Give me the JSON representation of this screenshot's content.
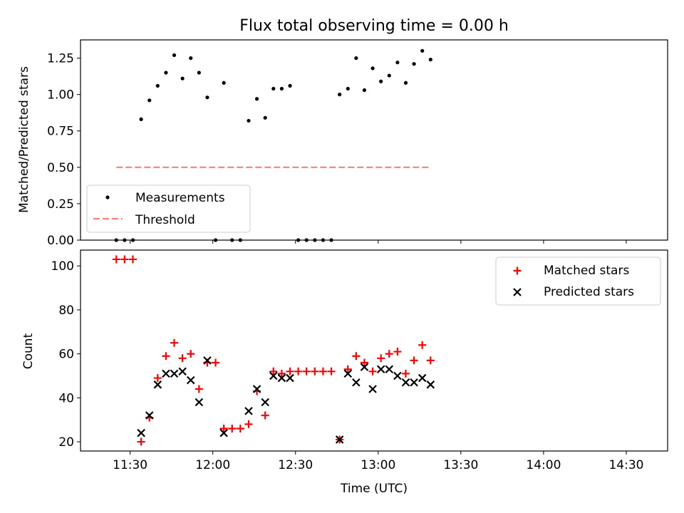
{
  "figure": {
    "title": "Flux total observing time = 0.00 h",
    "xlabel": "Time (UTC)"
  },
  "colors": {
    "measurements": "#000000",
    "threshold": "#ff7f7f",
    "matched": "#ff0000",
    "predicted": "#000000",
    "axes": "#000000",
    "legend_border": "#cccccc"
  },
  "chart_data": [
    {
      "type": "scatter",
      "panel": "top",
      "title": "Flux total observing time = 0.00 h",
      "xlabel": "",
      "ylabel": "Matched/Predicted stars",
      "xlim": [
        "11:12",
        "14:45"
      ],
      "ylim": [
        0,
        1.375
      ],
      "yticks": [
        0.0,
        0.25,
        0.5,
        0.75,
        1.0,
        1.25
      ],
      "ytick_labels": [
        "0.00",
        "0.25",
        "0.50",
        "0.75",
        "1.00",
        "1.25"
      ],
      "legend_placement": "lower-left",
      "series": [
        {
          "name": "Measurements",
          "marker": "dot",
          "points": [
            [
              "11:25",
              0.0
            ],
            [
              "11:28",
              0.0
            ],
            [
              "11:31",
              0.0
            ],
            [
              "11:34",
              0.83
            ],
            [
              "11:37",
              0.96
            ],
            [
              "11:40",
              1.06
            ],
            [
              "11:43",
              1.15
            ],
            [
              "11:46",
              1.27
            ],
            [
              "11:49",
              1.11
            ],
            [
              "11:52",
              1.25
            ],
            [
              "11:55",
              1.15
            ],
            [
              "11:58",
              0.98
            ],
            [
              "12:01",
              0.0
            ],
            [
              "12:04",
              1.08
            ],
            [
              "12:07",
              0.0
            ],
            [
              "12:10",
              0.0
            ],
            [
              "12:13",
              0.82
            ],
            [
              "12:16",
              0.97
            ],
            [
              "12:19",
              0.84
            ],
            [
              "12:22",
              1.04
            ],
            [
              "12:25",
              1.04
            ],
            [
              "12:28",
              1.06
            ],
            [
              "12:31",
              0.0
            ],
            [
              "12:34",
              0.0
            ],
            [
              "12:37",
              0.0
            ],
            [
              "12:40",
              0.0
            ],
            [
              "12:43",
              0.0
            ],
            [
              "12:46",
              1.0
            ],
            [
              "12:49",
              1.04
            ],
            [
              "12:52",
              1.25
            ],
            [
              "12:55",
              1.03
            ],
            [
              "12:58",
              1.18
            ],
            [
              "13:01",
              1.09
            ],
            [
              "13:04",
              1.13
            ],
            [
              "13:07",
              1.22
            ],
            [
              "13:10",
              1.08
            ],
            [
              "13:13",
              1.21
            ],
            [
              "13:16",
              1.3
            ],
            [
              "13:19",
              1.24
            ]
          ]
        },
        {
          "name": "Threshold",
          "marker": "dashed-line",
          "points": [
            [
              "11:25",
              0.5
            ],
            [
              "13:19",
              0.5
            ]
          ]
        }
      ]
    },
    {
      "type": "scatter",
      "panel": "bottom",
      "xlabel": "Time (UTC)",
      "ylabel": "Count",
      "xlim": [
        "11:12",
        "14:45"
      ],
      "ylim": [
        15.8,
        107.2
      ],
      "yticks": [
        20,
        40,
        60,
        80,
        100
      ],
      "xticks": [
        "11:30",
        "12:00",
        "12:30",
        "13:00",
        "13:30",
        "14:00",
        "14:30"
      ],
      "legend_placement": "top-right",
      "series": [
        {
          "name": "Matched stars",
          "marker": "plus",
          "points": [
            [
              "11:25",
              103
            ],
            [
              "11:28",
              103
            ],
            [
              "11:31",
              103
            ],
            [
              "11:34",
              20
            ],
            [
              "11:37",
              31
            ],
            [
              "11:40",
              49
            ],
            [
              "11:43",
              59
            ],
            [
              "11:46",
              65
            ],
            [
              "11:49",
              58
            ],
            [
              "11:52",
              60
            ],
            [
              "11:55",
              44
            ],
            [
              "11:58",
              56
            ],
            [
              "12:01",
              56
            ],
            [
              "12:04",
              26
            ],
            [
              "12:07",
              26
            ],
            [
              "12:10",
              26
            ],
            [
              "12:13",
              28
            ],
            [
              "12:16",
              43
            ],
            [
              "12:19",
              32
            ],
            [
              "12:22",
              52
            ],
            [
              "12:25",
              51
            ],
            [
              "12:28",
              52
            ],
            [
              "12:31",
              52
            ],
            [
              "12:34",
              52
            ],
            [
              "12:37",
              52
            ],
            [
              "12:40",
              52
            ],
            [
              "12:43",
              52
            ],
            [
              "12:46",
              21
            ],
            [
              "12:49",
              53
            ],
            [
              "12:52",
              59
            ],
            [
              "12:55",
              56
            ],
            [
              "12:58",
              52
            ],
            [
              "13:01",
              58
            ],
            [
              "13:04",
              60
            ],
            [
              "13:07",
              61
            ],
            [
              "13:10",
              51
            ],
            [
              "13:13",
              57
            ],
            [
              "13:16",
              64
            ],
            [
              "13:19",
              57
            ]
          ]
        },
        {
          "name": "Predicted stars",
          "marker": "x",
          "points": [
            [
              "11:34",
              24
            ],
            [
              "11:37",
              32
            ],
            [
              "11:40",
              46
            ],
            [
              "11:43",
              51
            ],
            [
              "11:46",
              51
            ],
            [
              "11:49",
              52
            ],
            [
              "11:52",
              48
            ],
            [
              "11:55",
              38
            ],
            [
              "11:58",
              57
            ],
            [
              "12:04",
              24
            ],
            [
              "12:13",
              34
            ],
            [
              "12:16",
              44
            ],
            [
              "12:19",
              38
            ],
            [
              "12:22",
              50
            ],
            [
              "12:25",
              49
            ],
            [
              "12:28",
              49
            ],
            [
              "12:46",
              21
            ],
            [
              "12:49",
              51
            ],
            [
              "12:52",
              47
            ],
            [
              "12:55",
              54
            ],
            [
              "12:58",
              44
            ],
            [
              "13:01",
              53
            ],
            [
              "13:04",
              53
            ],
            [
              "13:07",
              50
            ],
            [
              "13:10",
              47
            ],
            [
              "13:13",
              47
            ],
            [
              "13:16",
              49
            ],
            [
              "13:19",
              46
            ]
          ]
        }
      ]
    }
  ]
}
